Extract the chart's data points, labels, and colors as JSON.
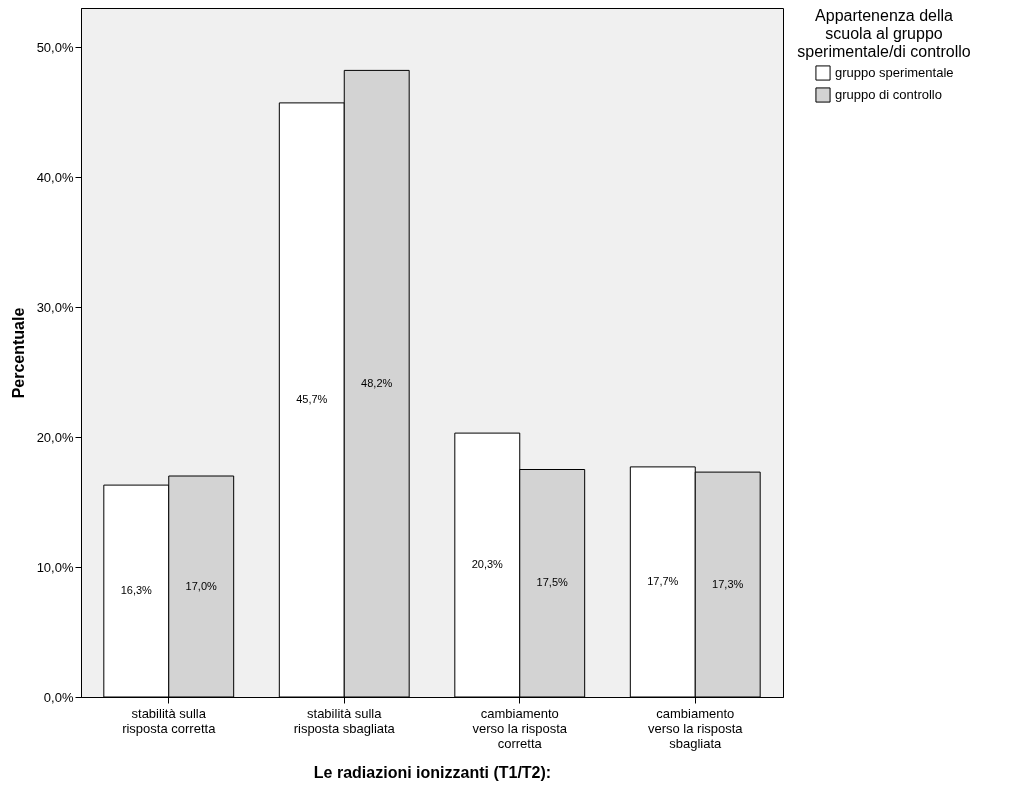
{
  "chart_data": {
    "type": "bar",
    "xlabel": "Le radiazioni ionizzanti (T1/T2):",
    "ylabel": "Percentuale",
    "legend_title": "Appartenenza della scuola al gruppo sperimentale/di controllo",
    "categories": [
      "stabilità sulla risposta corretta",
      "stabilità sulla risposta sbagliata",
      "cambiamento verso la risposta corretta",
      "cambiamento verso la risposta sbagliata"
    ],
    "series": [
      {
        "name": "gruppo sperimentale",
        "color": "#ffffff",
        "values": [
          16.3,
          45.7,
          20.3,
          17.7
        ],
        "value_labels": [
          "16,3%",
          "45,7%",
          "20,3%",
          "17,7%"
        ]
      },
      {
        "name": "gruppo di controllo",
        "color": "#d3d3d3",
        "values": [
          17.0,
          48.2,
          17.5,
          17.3
        ],
        "value_labels": [
          "17,0%",
          "48,2%",
          "17,5%",
          "17,3%"
        ]
      }
    ],
    "ylim": [
      0,
      53
    ],
    "yticks": [
      {
        "value": 0,
        "label": "0,0%"
      },
      {
        "value": 10,
        "label": "10,0%"
      },
      {
        "value": 20,
        "label": "20,0%"
      },
      {
        "value": 30,
        "label": "30,0%"
      },
      {
        "value": 40,
        "label": "40,0%"
      },
      {
        "value": 50,
        "label": "50,0%"
      }
    ],
    "grid": false,
    "legend": "top right"
  }
}
